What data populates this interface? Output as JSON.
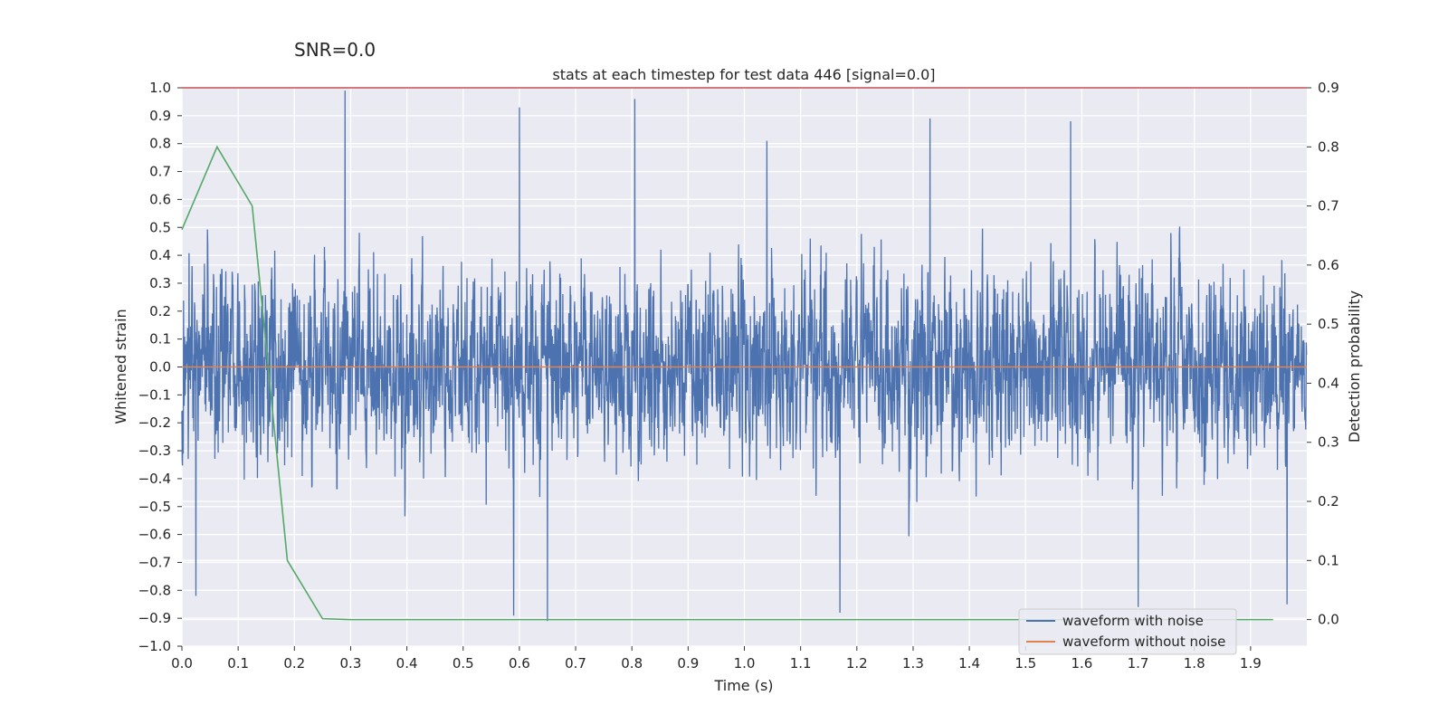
{
  "suptitle": "SNR=0.0",
  "chart_data": {
    "type": "line",
    "title": "stats at each timestep for test data 446 [signal=0.0]",
    "xlabel": "Time (s)",
    "ylabel": "Whitened strain",
    "ylabel_right": "Detection probability",
    "xlim": [
      0.0,
      2.0
    ],
    "ylim": [
      -1.0,
      1.0
    ],
    "ylim_right": [
      -0.045,
      0.9
    ],
    "x_ticks": [
      "0.0",
      "0.1",
      "0.2",
      "0.3",
      "0.4",
      "0.5",
      "0.6",
      "0.7",
      "0.8",
      "0.9",
      "1.0",
      "1.1",
      "1.2",
      "1.3",
      "1.4",
      "1.5",
      "1.6",
      "1.7",
      "1.8",
      "1.9"
    ],
    "y_ticks": [
      "1.0",
      "0.9",
      "0.8",
      "0.7",
      "0.6",
      "0.5",
      "0.4",
      "0.3",
      "0.2",
      "0.1",
      "0.0",
      "−0.1",
      "−0.2",
      "−0.3",
      "−0.4",
      "−0.5",
      "−0.6",
      "−0.7",
      "−0.8",
      "−0.9",
      "−1.0"
    ],
    "y_right_ticks": [
      "0.9",
      "0.8",
      "0.7",
      "0.6",
      "0.5",
      "0.4",
      "0.3",
      "0.2",
      "0.1",
      "0.0"
    ],
    "grid": true,
    "legend_position": "lower-right",
    "series": [
      {
        "name": "waveform with noise",
        "color": "#4c72b0",
        "axis": "left",
        "noise_like": true,
        "sample_rate": 2048,
        "duration": 2.0,
        "amplitude_std": 0.27,
        "peaks": [
          {
            "x": 0.29,
            "y": 0.99
          },
          {
            "x": 0.65,
            "y": -0.91
          },
          {
            "x": 0.805,
            "y": 0.96
          },
          {
            "x": 0.6,
            "y": 0.93
          },
          {
            "x": 1.58,
            "y": 0.88
          },
          {
            "x": 1.33,
            "y": 0.89
          },
          {
            "x": 1.04,
            "y": 0.81
          },
          {
            "x": 1.17,
            "y": -0.88
          },
          {
            "x": 0.59,
            "y": -0.89
          },
          {
            "x": 0.025,
            "y": -0.82
          },
          {
            "x": 1.7,
            "y": -0.86
          },
          {
            "x": 1.965,
            "y": -0.85
          }
        ]
      },
      {
        "name": "waveform without noise",
        "color": "#dd8452",
        "axis": "left",
        "x": [
          0.0,
          2.0
        ],
        "y": [
          0.0,
          0.0
        ]
      },
      {
        "name": "",
        "color": "#55a868",
        "axis": "right",
        "x": [
          0.0,
          0.0625,
          0.125,
          0.1875,
          0.25,
          0.3,
          0.5,
          1.0,
          1.5,
          1.94
        ],
        "y": [
          0.66,
          0.8,
          0.7,
          0.1,
          0.0015,
          0.0,
          0.0,
          0.0,
          0.0,
          0.0
        ]
      },
      {
        "name": "",
        "color": "#c44e52",
        "axis": "right",
        "x": [
          0.0,
          2.0
        ],
        "y": [
          0.9,
          0.9
        ]
      }
    ]
  }
}
